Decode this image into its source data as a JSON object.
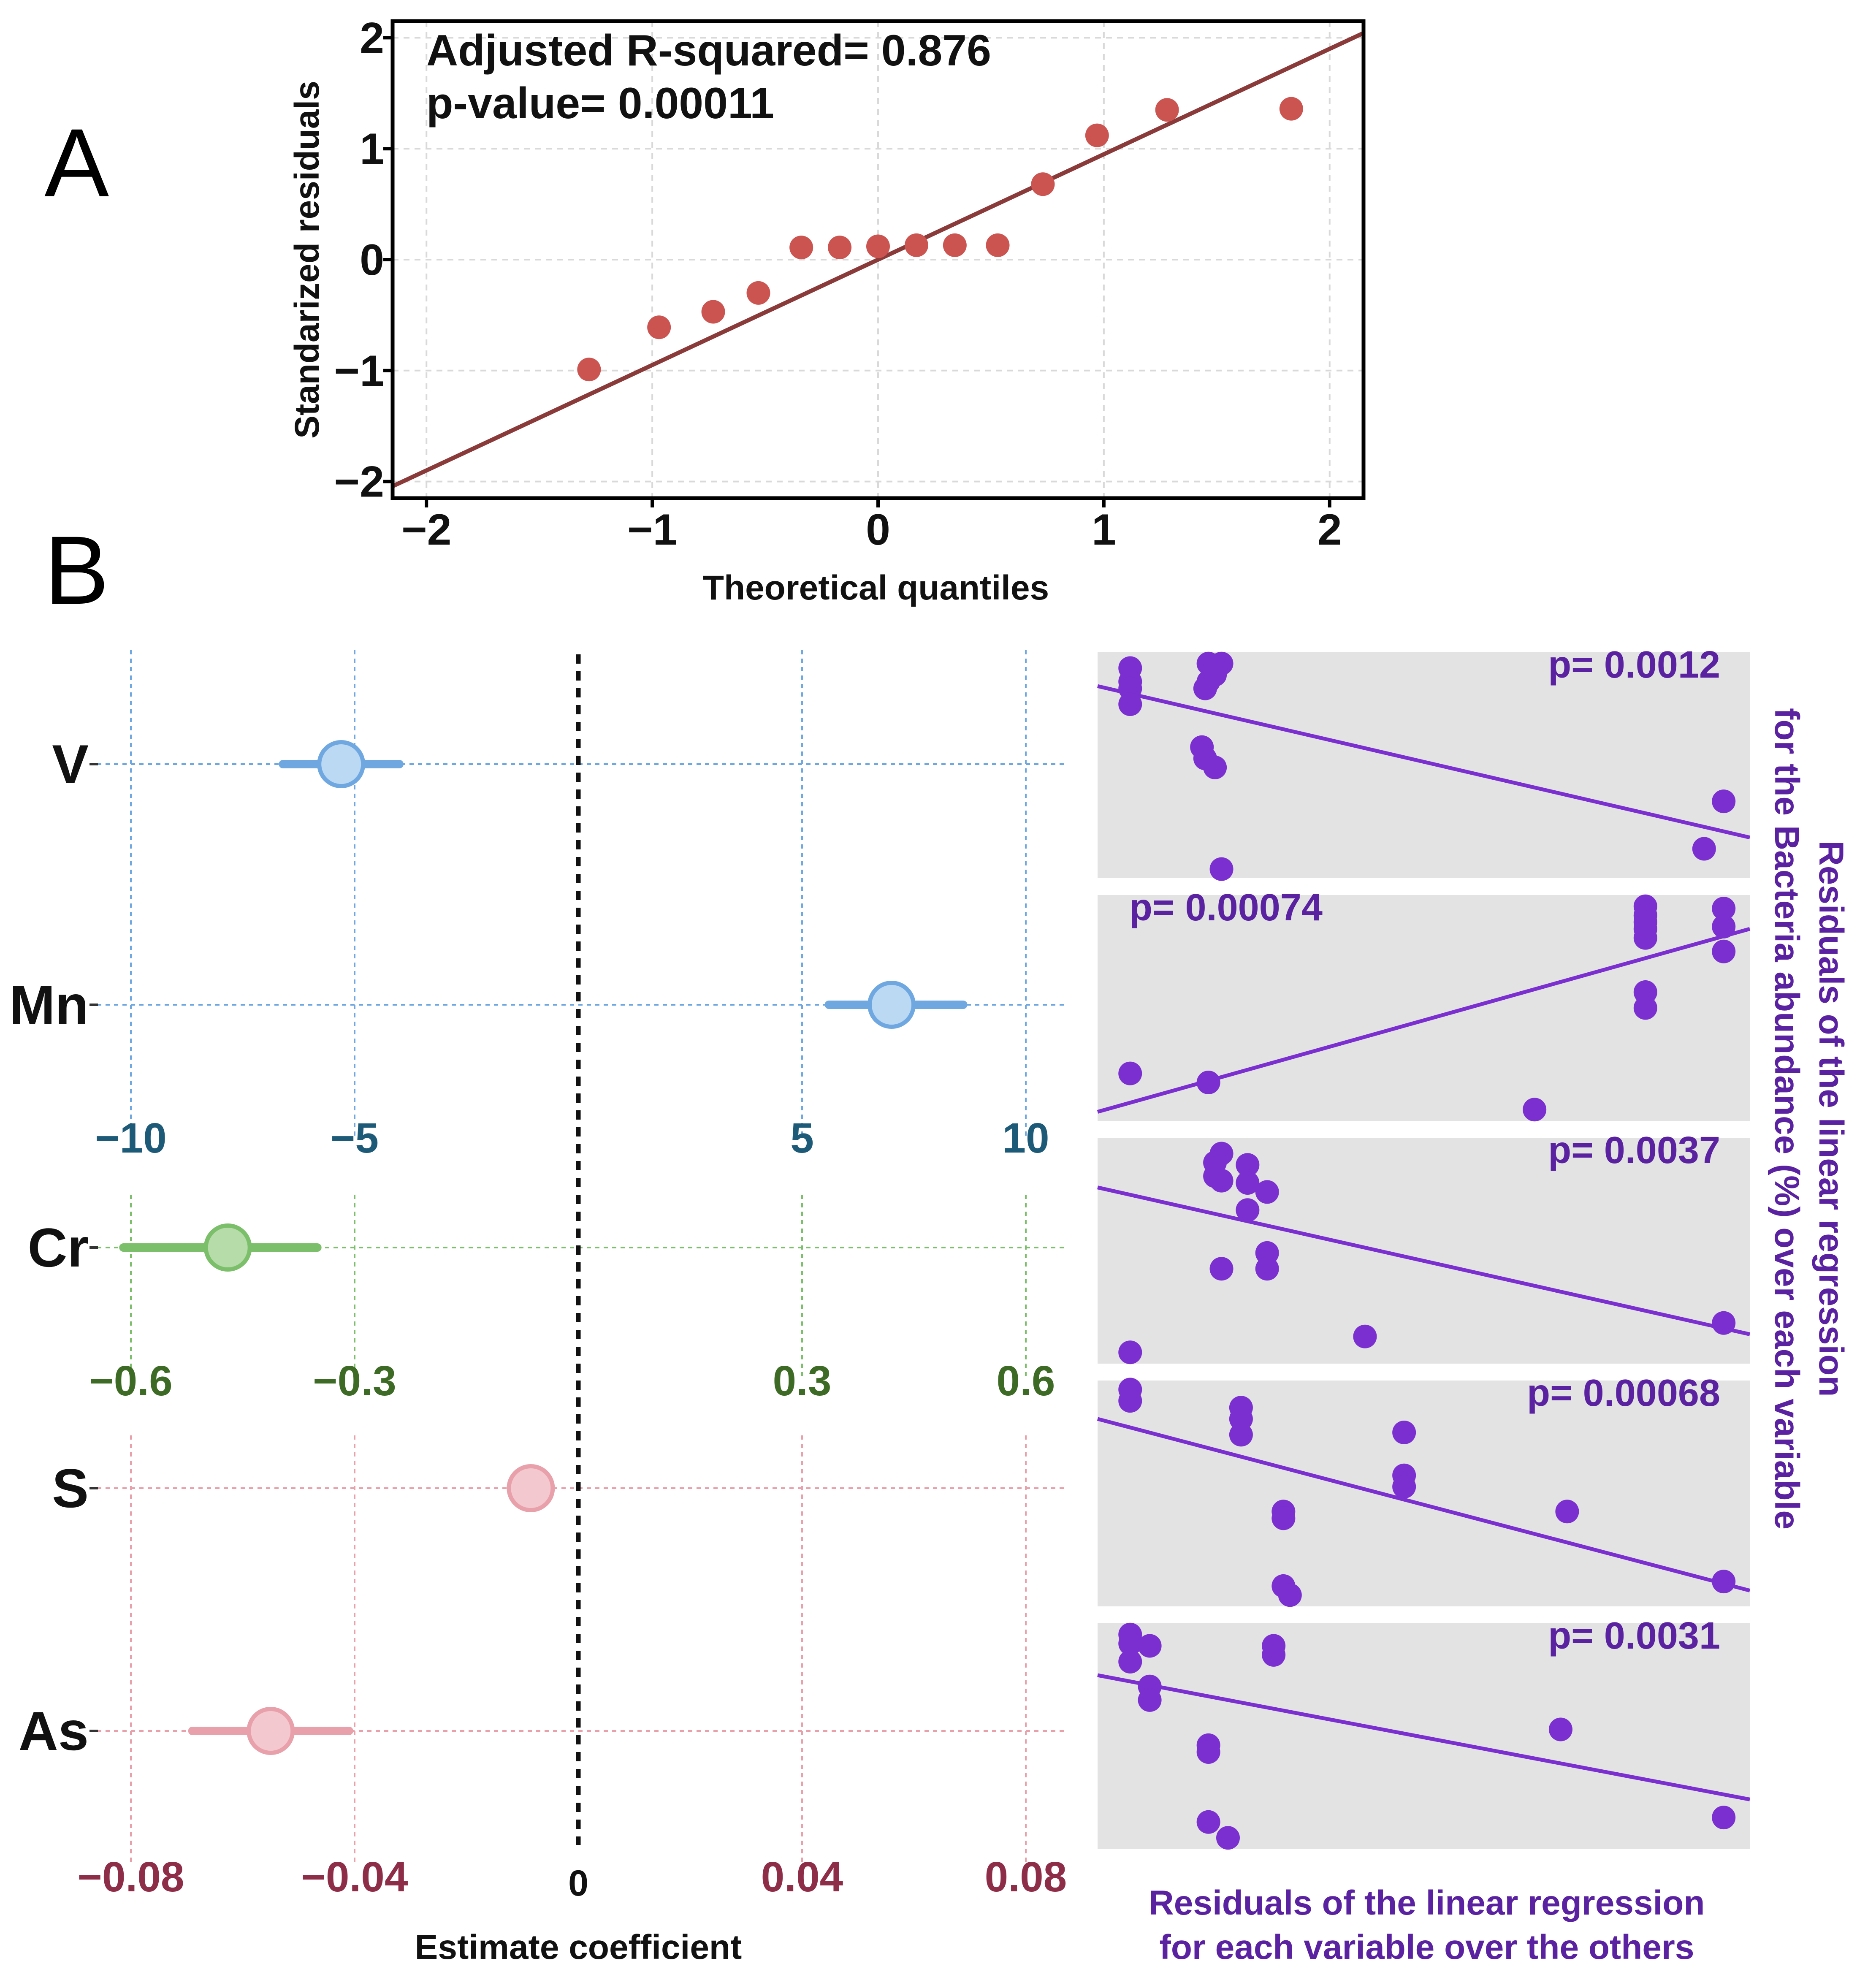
{
  "panel_labels": {
    "a": "A",
    "b": "B"
  },
  "colors": {
    "red_points": "#cc5450",
    "red_line": "#8b3a3a",
    "blue": "#6fa8e0",
    "blue_fill": "#bcd9f3",
    "blue_text": "#1d5a78",
    "green": "#7cbf6a",
    "green_fill": "#b5dca9",
    "green_text": "#3d6b25",
    "pink": "#e8a0aa",
    "pink_fill": "#f3c9cf",
    "pink_text": "#8e2d48",
    "purple": "#7b2fd0",
    "purple_text": "#5a22a0",
    "panel_bg": "#e3e3e3"
  },
  "chart_data": [
    {
      "id": "qq",
      "type": "scatter",
      "title": "",
      "xlabel": "Theoretical quantiles",
      "ylabel": "Standarized residuals",
      "xlim": [
        -2.15,
        2.15
      ],
      "ylim": [
        -2.15,
        2.15
      ],
      "xticks": [
        -2,
        -1,
        0,
        1,
        2
      ],
      "yticks": [
        -2,
        -1,
        0,
        1,
        2
      ],
      "xtick_labels": [
        "−2",
        "−1",
        "0",
        "1",
        "2"
      ],
      "ytick_labels": [
        "−2",
        "−1",
        "0",
        "1",
        "2"
      ],
      "annotation_line1": "Adjusted R-squared= 0.876",
      "annotation_line2": "p-value= 0.00011",
      "points": [
        [
          -1.28,
          -0.99
        ],
        [
          -0.97,
          -0.61
        ],
        [
          -0.73,
          -0.47
        ],
        [
          -0.53,
          -0.3
        ],
        [
          -0.34,
          0.11
        ],
        [
          -0.17,
          0.11
        ],
        [
          0.0,
          0.12
        ],
        [
          0.17,
          0.13
        ],
        [
          0.34,
          0.13
        ],
        [
          0.53,
          0.13
        ],
        [
          0.73,
          0.68
        ],
        [
          0.97,
          1.12
        ],
        [
          1.28,
          1.35
        ],
        [
          1.83,
          1.36
        ]
      ],
      "fit_line": {
        "intercept": 0.0,
        "slope": 0.95
      }
    },
    {
      "id": "coef",
      "type": "dot-whisker",
      "xlabel": "Estimate coefficient",
      "zero_label": "0",
      "variables": [
        "V",
        "Mn",
        "Cr",
        "S",
        "As"
      ],
      "axes": [
        {
          "name": "blue",
          "range": [
            -10,
            10
          ],
          "ticks": [
            -10,
            -5,
            5,
            10
          ],
          "tick_labels": [
            "−10",
            "−5",
            "5",
            "10"
          ]
        },
        {
          "name": "green",
          "range": [
            -0.6,
            0.6
          ],
          "ticks": [
            -0.6,
            -0.3,
            0.3,
            0.6
          ],
          "tick_labels": [
            "−0.6",
            "−0.3",
            "0.3",
            "0.6"
          ]
        },
        {
          "name": "pink",
          "range": [
            -0.08,
            0.08
          ],
          "ticks": [
            -0.08,
            -0.04,
            0.04,
            0.08
          ],
          "tick_labels": [
            "−0.08",
            "−0.04",
            "0.04",
            "0.08"
          ]
        }
      ],
      "estimates": [
        {
          "var": "V",
          "axis": "blue",
          "estimate": -5.3,
          "low": -6.6,
          "high": -4.0
        },
        {
          "var": "Mn",
          "axis": "blue",
          "estimate": 7.0,
          "low": 5.6,
          "high": 8.6
        },
        {
          "var": "Cr",
          "axis": "green",
          "estimate": -0.47,
          "low": -0.61,
          "high": -0.35
        },
        {
          "var": "S",
          "axis": "pink",
          "estimate": -0.0085,
          "low": -0.0105,
          "high": -0.0065
        },
        {
          "var": "As",
          "axis": "pink",
          "estimate": -0.055,
          "low": -0.069,
          "high": -0.041
        }
      ]
    },
    {
      "id": "partial-residuals",
      "type": "scatter",
      "xlabel_line1": "Residuals of the linear regression",
      "xlabel_line2": "for each variable over the others",
      "ylabel_line1": "Residuals of the linear regression",
      "ylabel_line2": "for the Bacteria abundance (%) over each variable",
      "panels": [
        {
          "var": "V",
          "p_label": "p= 0.0012",
          "label_side": "right",
          "points": [
            [
              0.05,
              0.93
            ],
            [
              0.05,
              0.87
            ],
            [
              0.05,
              0.84
            ],
            [
              0.05,
              0.77
            ],
            [
              0.17,
              0.95
            ],
            [
              0.18,
              0.94
            ],
            [
              0.19,
              0.95
            ],
            [
              0.17,
              0.87
            ],
            [
              0.165,
              0.84
            ],
            [
              0.18,
              0.9
            ],
            [
              0.16,
              0.58
            ],
            [
              0.165,
              0.53
            ],
            [
              0.18,
              0.49
            ],
            [
              0.19,
              0.04
            ],
            [
              0.96,
              0.34
            ],
            [
              0.93,
              0.13
            ]
          ],
          "fit": [
            [
              0.0,
              0.85
            ],
            [
              1.0,
              0.18
            ]
          ]
        },
        {
          "var": "Mn",
          "p_label": "p= 0.00074",
          "label_side": "left",
          "points": [
            [
              0.84,
              0.95
            ],
            [
              0.84,
              0.91
            ],
            [
              0.84,
              0.88
            ],
            [
              0.84,
              0.85
            ],
            [
              0.84,
              0.81
            ],
            [
              0.96,
              0.94
            ],
            [
              0.96,
              0.86
            ],
            [
              0.96,
              0.75
            ],
            [
              0.84,
              0.57
            ],
            [
              0.84,
              0.5
            ],
            [
              0.05,
              0.21
            ],
            [
              0.17,
              0.17
            ],
            [
              0.67,
              0.05
            ]
          ],
          "fit": [
            [
              0.0,
              0.04
            ],
            [
              1.0,
              0.85
            ]
          ]
        },
        {
          "var": "Cr",
          "p_label": "p= 0.0037",
          "label_side": "right",
          "points": [
            [
              0.19,
              0.93
            ],
            [
              0.18,
              0.89
            ],
            [
              0.18,
              0.83
            ],
            [
              0.19,
              0.81
            ],
            [
              0.23,
              0.88
            ],
            [
              0.23,
              0.8
            ],
            [
              0.26,
              0.76
            ],
            [
              0.23,
              0.68
            ],
            [
              0.26,
              0.49
            ],
            [
              0.26,
              0.42
            ],
            [
              0.19,
              0.42
            ],
            [
              0.41,
              0.12
            ],
            [
              0.05,
              0.05
            ],
            [
              0.96,
              0.18
            ]
          ],
          "fit": [
            [
              0.0,
              0.78
            ],
            [
              1.0,
              0.13
            ]
          ]
        },
        {
          "var": "S",
          "p_label": "p= 0.00068",
          "label_side": "right",
          "points": [
            [
              0.05,
              0.96
            ],
            [
              0.05,
              0.91
            ],
            [
              0.22,
              0.88
            ],
            [
              0.22,
              0.83
            ],
            [
              0.22,
              0.76
            ],
            [
              0.47,
              0.77
            ],
            [
              0.47,
              0.58
            ],
            [
              0.47,
              0.53
            ],
            [
              0.285,
              0.42
            ],
            [
              0.285,
              0.39
            ],
            [
              0.285,
              0.09
            ],
            [
              0.295,
              0.05
            ],
            [
              0.72,
              0.42
            ],
            [
              0.96,
              0.11
            ]
          ],
          "fit": [
            [
              0.0,
              0.83
            ],
            [
              1.0,
              0.07
            ]
          ]
        },
        {
          "var": "As",
          "p_label": "p= 0.0031",
          "label_side": "right",
          "points": [
            [
              0.05,
              0.95
            ],
            [
              0.05,
              0.91
            ],
            [
              0.05,
              0.83
            ],
            [
              0.08,
              0.9
            ],
            [
              0.08,
              0.72
            ],
            [
              0.08,
              0.66
            ],
            [
              0.27,
              0.9
            ],
            [
              0.27,
              0.86
            ],
            [
              0.17,
              0.46
            ],
            [
              0.17,
              0.43
            ],
            [
              0.17,
              0.12
            ],
            [
              0.2,
              0.05
            ],
            [
              0.71,
              0.53
            ],
            [
              0.96,
              0.14
            ]
          ],
          "fit": [
            [
              0.0,
              0.77
            ],
            [
              1.0,
              0.22
            ]
          ]
        }
      ]
    }
  ]
}
